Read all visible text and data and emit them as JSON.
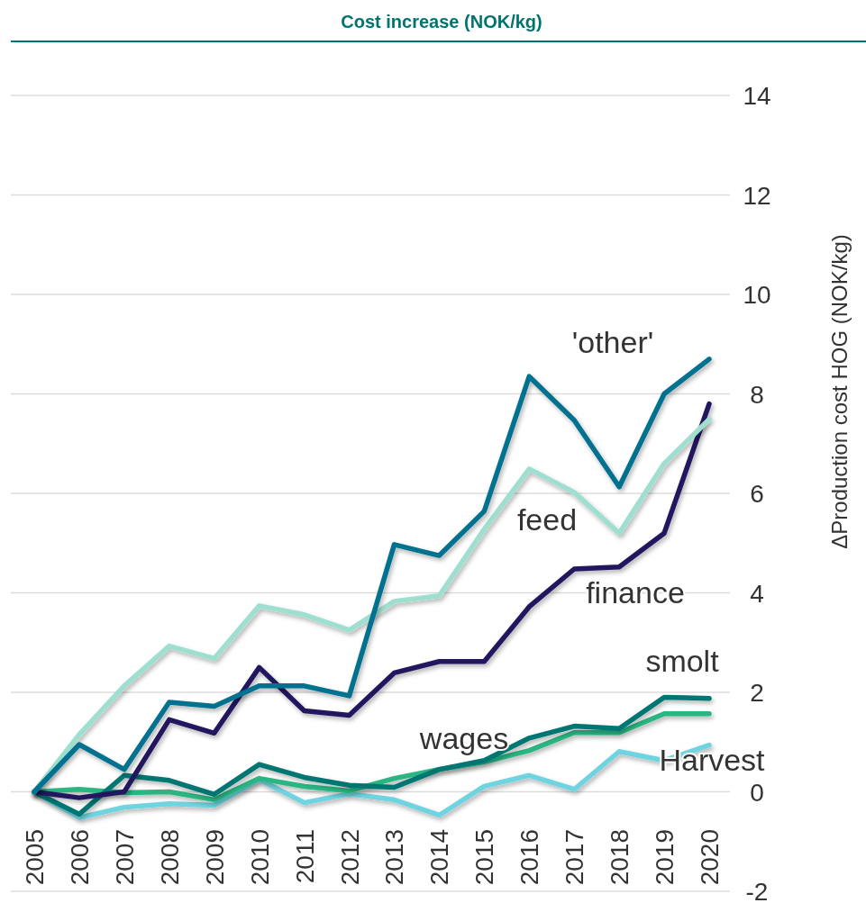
{
  "chart_data": {
    "type": "line",
    "title": "Cost increase (NOK/kg)",
    "ylabel": "ΔProduction cost HOG (NOK/kg)",
    "categories": [
      "2005",
      "2006",
      "2007",
      "2008",
      "2009",
      "2010",
      "2011",
      "2012",
      "2013",
      "2014",
      "2015",
      "2016",
      "2017",
      "2018",
      "2019",
      "2020"
    ],
    "series": [
      {
        "name": "Harvest",
        "color": "#70d4e0",
        "values": [
          0,
          -0.52,
          -0.31,
          -0.24,
          -0.27,
          0.25,
          -0.22,
          -0.04,
          -0.16,
          -0.47,
          0.11,
          0.33,
          0.05,
          0.81,
          0.63,
          0.94
        ]
      },
      {
        "name": "wages",
        "color": "#2bb683",
        "values": [
          0,
          0.05,
          -0.02,
          0,
          -0.16,
          0.27,
          0.11,
          0.02,
          0.27,
          0.45,
          0.6,
          0.83,
          1.19,
          1.19,
          1.57,
          1.57
        ]
      },
      {
        "name": "smolt",
        "color": "#007672",
        "values": [
          0,
          -0.45,
          0.33,
          0.23,
          -0.05,
          0.55,
          0.29,
          0.13,
          0.09,
          0.45,
          0.63,
          1.08,
          1.32,
          1.27,
          1.9,
          1.88
        ]
      },
      {
        "name": "finance",
        "color": "#22195f",
        "values": [
          0,
          -0.12,
          0,
          1.45,
          1.18,
          2.5,
          1.63,
          1.54,
          2.39,
          2.62,
          2.62,
          3.72,
          4.48,
          4.52,
          5.2,
          7.8
        ]
      },
      {
        "name": "feed",
        "color": "#9fdfcf",
        "values": [
          0,
          1.15,
          2.13,
          2.93,
          2.68,
          3.74,
          3.56,
          3.25,
          3.83,
          3.94,
          5.28,
          6.49,
          6.02,
          5.2,
          6.6,
          7.49
        ]
      },
      {
        "name": "'other'",
        "color": "#00718f",
        "values": [
          0,
          0.95,
          0.45,
          1.8,
          1.72,
          2.13,
          2.13,
          1.93,
          4.97,
          4.75,
          5.64,
          8.35,
          7.47,
          6.13,
          8.0,
          8.7
        ]
      }
    ],
    "ylim": [
      -2,
      14
    ],
    "yticks": [
      -2,
      0,
      2,
      4,
      6,
      8,
      10,
      12,
      14
    ],
    "grid": "y",
    "legend": false,
    "marker": "none",
    "line_style": "solid"
  }
}
